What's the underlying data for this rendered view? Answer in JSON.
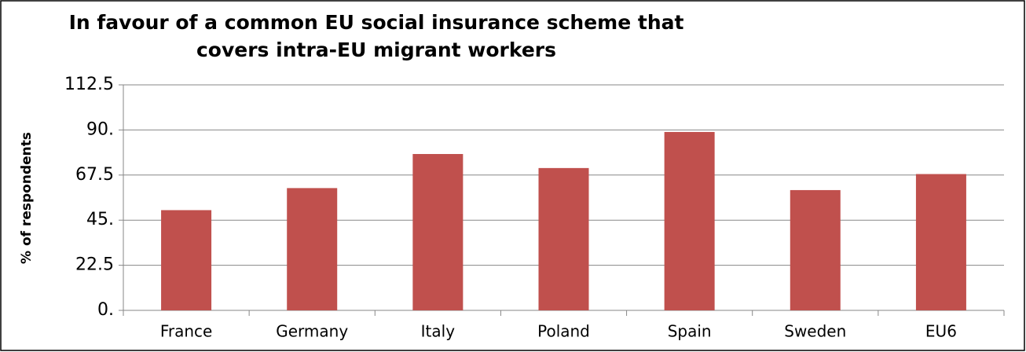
{
  "chart_data": {
    "type": "bar",
    "title": [
      "In favour of a common EU social insurance scheme that",
      "covers intra-EU migrant workers"
    ],
    "ylabel": "% of respondents",
    "categories": [
      "France",
      "Germany",
      "Italy",
      "Poland",
      "Spain",
      "Sweden",
      "EU6"
    ],
    "values": [
      50,
      61,
      78,
      71,
      89,
      60,
      68
    ],
    "color": "#c0504d",
    "ylim": [
      0,
      112.5
    ],
    "yticks": [
      {
        "value": 0,
        "label": "0."
      },
      22.5,
      {
        "value": 45,
        "label": "45."
      },
      67.5,
      {
        "value": 90,
        "label": "90."
      },
      112.5
    ],
    "grid": true
  }
}
